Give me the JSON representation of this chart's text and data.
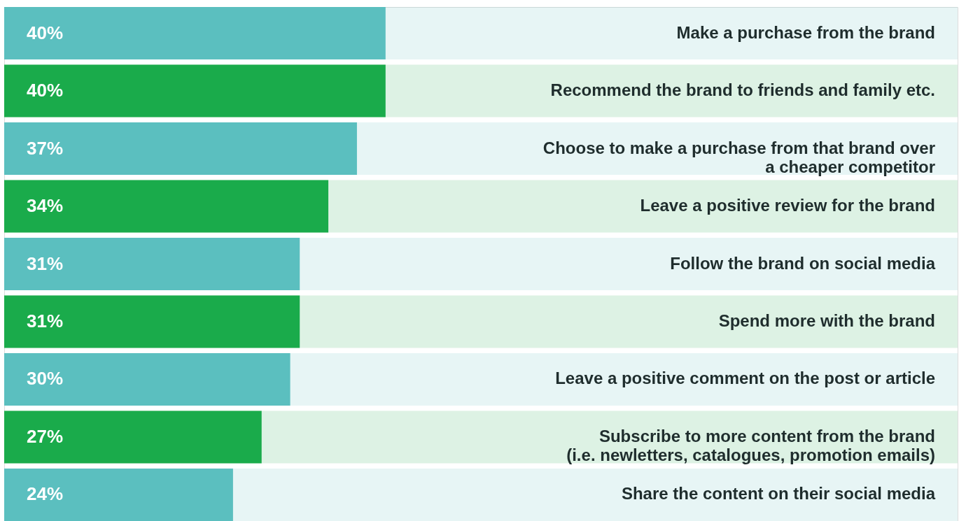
{
  "chart_data": {
    "type": "bar",
    "orientation": "horizontal",
    "categories": [
      "Make a purchase from the brand",
      "Recommend the brand to friends and family etc.",
      "Choose to make a purchase from that brand over\na cheaper competitor",
      "Leave a positive review for the brand",
      "Follow the brand on social media",
      "Spend more with the brand",
      "Leave a positive comment on the post or article",
      "Subscribe to more content from the brand\n(i.e. newletters, catalogues, promotion emails)",
      "Share the content on their social media"
    ],
    "values": [
      40,
      40,
      37,
      34,
      31,
      31,
      30,
      27,
      24
    ],
    "value_labels": [
      "40%",
      "40%",
      "37%",
      "34%",
      "31%",
      "31%",
      "30%",
      "27%",
      "24%"
    ],
    "colors": [
      "#5bbfbf",
      "#1aab4b",
      "#5bbfbf",
      "#1aab4b",
      "#5bbfbf",
      "#1aab4b",
      "#5bbfbf",
      "#1aab4b",
      "#5bbfbf"
    ],
    "xlim": [
      0,
      100
    ],
    "tick_labels": false,
    "grid": false
  }
}
